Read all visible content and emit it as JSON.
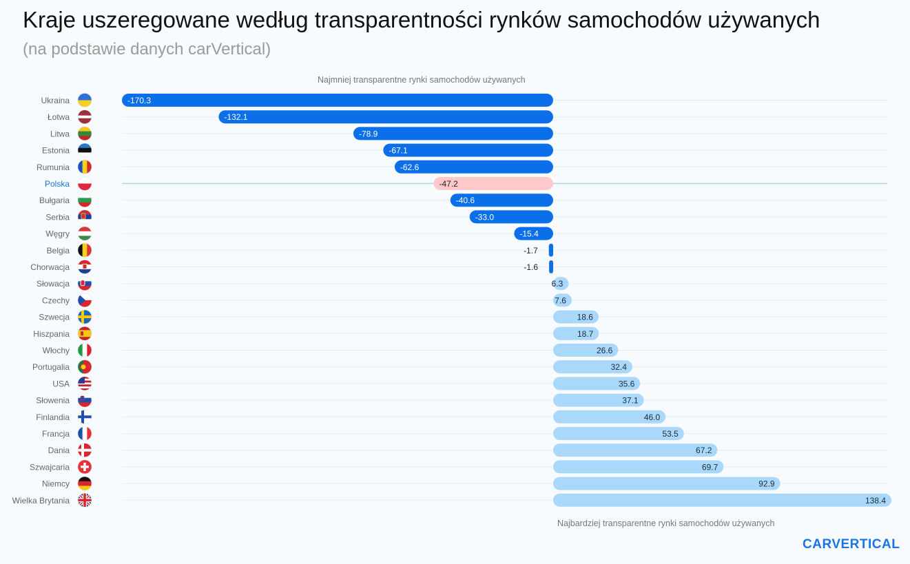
{
  "header": {
    "title": "Kraje uszeregowane według transparentności rynków samochodów używanych",
    "subtitle": "(na podstawie danych carVertical)"
  },
  "annotations": {
    "top": "Najmniej transparentne rynki samochodów używanych",
    "bottom": "Najbardziej transparentne rynki samochodów używanych"
  },
  "brand": {
    "logo": "CARVERTICAL"
  },
  "colors": {
    "negative": "#0a6fe8",
    "positive": "#a9d8fb",
    "highlight": "#ffc9c9",
    "highlight_label": "#1a73d9",
    "label": "#666666"
  },
  "chart_data": {
    "type": "bar",
    "orientation": "horizontal",
    "highlight": "Polska",
    "xlim": [
      -170.3,
      138.4
    ],
    "categories": [
      "Ukraina",
      "Łotwa",
      "Litwa",
      "Estonia",
      "Rumunia",
      "Polska",
      "Bułgaria",
      "Serbia",
      "Węgry",
      "Belgia",
      "Chorwacja",
      "Słowacja",
      "Czechy",
      "Szwecja",
      "Hiszpania",
      "Włochy",
      "Portugalia",
      "USA",
      "Słowenia",
      "Finlandia",
      "Francja",
      "Dania",
      "Szwajcaria",
      "Niemcy",
      "Wielka Brytania"
    ],
    "values": [
      -170.3,
      -132.1,
      -78.9,
      -67.1,
      -62.6,
      -47.2,
      -40.6,
      -33.0,
      -15.4,
      -1.7,
      -1.6,
      6.3,
      7.6,
      18.6,
      18.7,
      26.6,
      32.4,
      35.6,
      37.1,
      46.0,
      53.5,
      67.2,
      69.7,
      92.9,
      138.4
    ],
    "value_labels": [
      "-170.3",
      "-132.1",
      "-78.9",
      "-67.1",
      "-62.6",
      "-47.2",
      "-40.6",
      "-33.0",
      "-15.4",
      "-1.7",
      "-1.6",
      "6.3",
      "7.6",
      "18.6",
      "18.7",
      "26.6",
      "32.4",
      "35.6",
      "37.1",
      "46.0",
      "53.5",
      "67.2",
      "69.7",
      "92.9",
      "138.4"
    ],
    "flags": [
      "flag-ua",
      "flag-lv",
      "flag-lt",
      "flag-ee",
      "flag-ro",
      "flag-pl",
      "flag-bg",
      "flag-rs",
      "flag-hu",
      "flag-be",
      "flag-hr",
      "flag-sk",
      "flag-cz",
      "flag-se",
      "flag-es",
      "flag-it",
      "flag-pt",
      "flag-us",
      "flag-si",
      "flag-fi",
      "flag-fr",
      "flag-dk",
      "flag-ch",
      "flag-de",
      "flag-gb"
    ]
  }
}
